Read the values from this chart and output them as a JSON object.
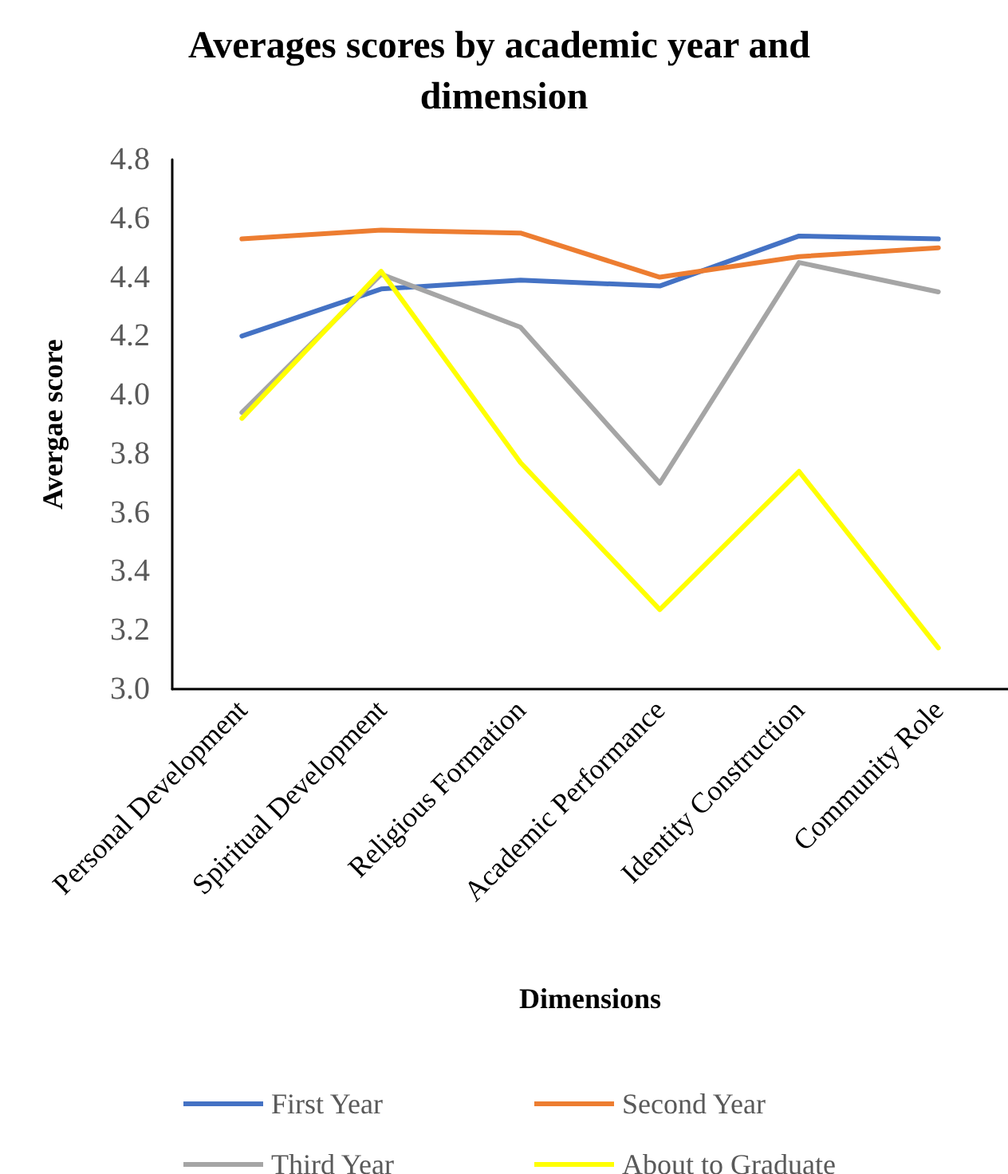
{
  "chart_data": {
    "type": "line",
    "title": "Averages scores by academic year and dimension",
    "xlabel": "Dimensions",
    "ylabel": "Avergae score",
    "categories": [
      "Personal Development",
      "Spiritual Development",
      "Religious Formation",
      "Academic Performance",
      "Identity Construction",
      "Community Role"
    ],
    "series": [
      {
        "name": "First Year",
        "color": "#4472c4",
        "values": [
          4.2,
          4.36,
          4.39,
          4.37,
          4.54,
          4.53
        ]
      },
      {
        "name": "Second Year",
        "color": "#ed7d31",
        "values": [
          4.53,
          4.56,
          4.55,
          4.4,
          4.47,
          4.5
        ]
      },
      {
        "name": "Third Year",
        "color": "#a5a5a5",
        "values": [
          3.94,
          4.41,
          4.23,
          3.7,
          4.45,
          4.35
        ]
      },
      {
        "name": "About to Graduate",
        "color": "#ffff00",
        "values": [
          3.92,
          4.42,
          3.77,
          3.27,
          3.74,
          3.14
        ]
      }
    ],
    "ylim": [
      3.0,
      4.8
    ],
    "yticks": [
      {
        "value": 3.0,
        "label": "3.0"
      },
      {
        "value": 3.2,
        "label": "3.2"
      },
      {
        "value": 3.4,
        "label": "3.4"
      },
      {
        "value": 3.6,
        "label": "3.6"
      },
      {
        "value": 3.8,
        "label": "3.8"
      },
      {
        "value": 4.0,
        "label": "4.0"
      },
      {
        "value": 4.2,
        "label": "4.2"
      },
      {
        "value": 4.4,
        "label": "4.4"
      },
      {
        "value": 4.6,
        "label": "4.6"
      },
      {
        "value": 4.8,
        "label": "4.8"
      }
    ],
    "grid": false,
    "legend": "bottom",
    "marker": "none",
    "line_style": "solid"
  }
}
